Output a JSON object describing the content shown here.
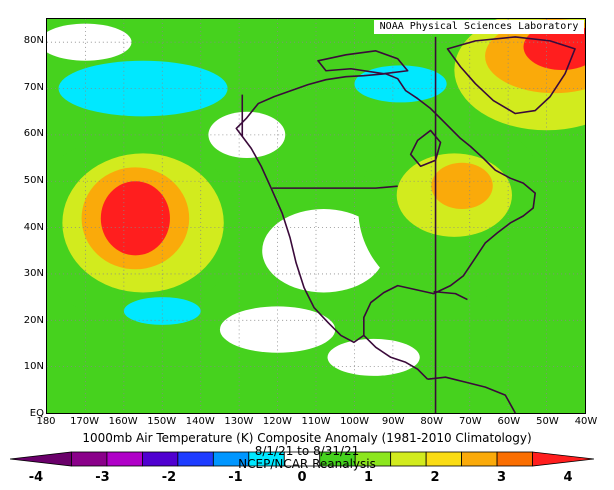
{
  "credit": "NOAA Physical Sciences Laboratory",
  "title_line1": "1000mb Air Temperature (K) Composite Anomaly (1981-2010 Climatology)",
  "title_line2": "8/1/21 to 8/31/21",
  "title_line3": "NCEP/NCAR Reanalysis",
  "lat_labels": [
    "80N",
    "70N",
    "60N",
    "50N",
    "40N",
    "30N",
    "20N",
    "10N",
    "EQ"
  ],
  "lon_labels": [
    "180",
    "170W",
    "160W",
    "150W",
    "140W",
    "130W",
    "120W",
    "110W",
    "100W",
    "90W",
    "80W",
    "70W",
    "60W",
    "50W",
    "40W"
  ],
  "colorbar": {
    "labels": [
      "-4",
      "-3",
      "-2",
      "-1",
      "0",
      "1",
      "2",
      "3",
      "4"
    ],
    "bins": [
      {
        "from": -4.0,
        "to": -3.5,
        "color": "#6a006a"
      },
      {
        "from": -3.5,
        "to": -3.0,
        "color": "#8a008a"
      },
      {
        "from": -3.0,
        "to": -2.5,
        "color": "#b000c8"
      },
      {
        "from": -2.5,
        "to": -2.0,
        "color": "#5000d0"
      },
      {
        "from": -2.0,
        "to": -1.5,
        "color": "#1e3cff"
      },
      {
        "from": -1.5,
        "to": -1.0,
        "color": "#0096ff"
      },
      {
        "from": -1.0,
        "to": -0.5,
        "color": "#00e8ff"
      },
      {
        "from": -0.5,
        "to": 0.5,
        "color": "#ffffff"
      },
      {
        "from": 0.5,
        "to": 1.0,
        "color": "#46d21e"
      },
      {
        "from": 1.0,
        "to": 1.5,
        "color": "#8ce61e"
      },
      {
        "from": 1.5,
        "to": 2.0,
        "color": "#d2eb1e"
      },
      {
        "from": 2.0,
        "to": 2.5,
        "color": "#fadc14"
      },
      {
        "from": 2.5,
        "to": 3.0,
        "color": "#faaa0a"
      },
      {
        "from": 3.0,
        "to": 3.5,
        "color": "#fa6e00"
      },
      {
        "from": 3.5,
        "to": 4.0,
        "color": "#ff1e1e"
      }
    ]
  },
  "map_extent": {
    "lon_min": -180,
    "lon_max": -40,
    "lat_min": 0,
    "lat_max": 85
  },
  "anomaly_blobs": [
    {
      "lon": -157,
      "lat": 42,
      "rx": 9,
      "ry": 8,
      "value": 3.6
    },
    {
      "lon": -157,
      "lat": 42,
      "rx": 14,
      "ry": 11,
      "value": 2.7
    },
    {
      "lon": -155,
      "lat": 41,
      "rx": 21,
      "ry": 15,
      "value": 1.7
    },
    {
      "lon": -158,
      "lat": 40,
      "rx": 28,
      "ry": 20,
      "value": 0.8
    },
    {
      "lon": -72,
      "lat": 49,
      "rx": 8,
      "ry": 5,
      "value": 2.7
    },
    {
      "lon": -74,
      "lat": 47,
      "rx": 15,
      "ry": 9,
      "value": 1.7
    },
    {
      "lon": -74,
      "lat": 44,
      "rx": 25,
      "ry": 20,
      "value": 0.8
    },
    {
      "lon": -46,
      "lat": 79,
      "rx": 10,
      "ry": 5,
      "value": 3.6
    },
    {
      "lon": -48,
      "lat": 77,
      "rx": 18,
      "ry": 8,
      "value": 2.7
    },
    {
      "lon": -50,
      "lat": 74,
      "rx": 24,
      "ry": 13,
      "value": 1.7
    },
    {
      "lon": -155,
      "lat": 70,
      "rx": 22,
      "ry": 6,
      "value": -0.8
    },
    {
      "lon": -88,
      "lat": 71,
      "rx": 12,
      "ry": 4,
      "value": -0.8
    },
    {
      "lon": -150,
      "lat": 22,
      "rx": 10,
      "ry": 3,
      "value": -0.8
    }
  ]
}
